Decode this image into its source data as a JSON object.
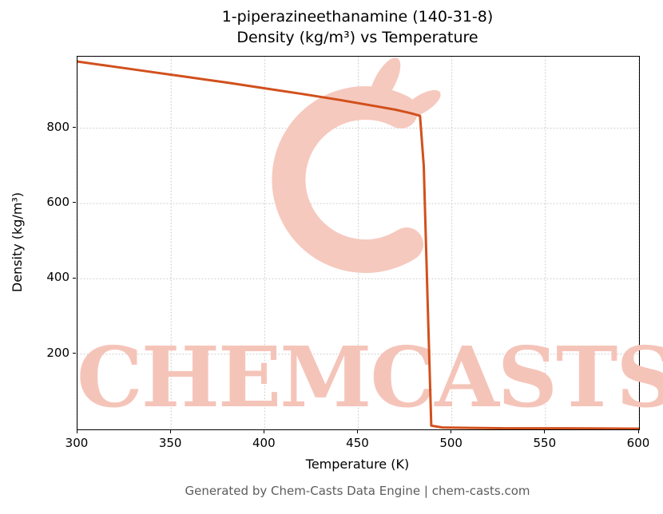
{
  "chart_data": {
    "type": "line",
    "title_line1": "1-piperazineethanamine (140-31-8)",
    "title_line2": "Density (kg/m³) vs Temperature",
    "xlabel": "Temperature (K)",
    "ylabel": "Density (kg/m³)",
    "xlim": [
      300,
      600
    ],
    "ylim": [
      0,
      990
    ],
    "x_ticks": [
      300,
      350,
      400,
      450,
      500,
      550,
      600
    ],
    "y_ticks": [
      200,
      400,
      600,
      800
    ],
    "grid": true,
    "legend": "none",
    "series": [
      {
        "name": "Density",
        "color": "#d1501d",
        "line_width": 3,
        "points": [
          [
            300,
            977
          ],
          [
            320,
            963
          ],
          [
            340,
            949
          ],
          [
            360,
            935
          ],
          [
            380,
            921
          ],
          [
            400,
            906
          ],
          [
            420,
            891
          ],
          [
            440,
            875
          ],
          [
            460,
            858
          ],
          [
            470,
            849
          ],
          [
            478,
            840
          ],
          [
            483,
            833
          ],
          [
            485,
            700
          ],
          [
            487,
            350
          ],
          [
            489,
            10
          ],
          [
            495,
            5
          ],
          [
            510,
            4
          ],
          [
            530,
            3
          ],
          [
            560,
            3
          ],
          [
            600,
            2
          ]
        ]
      }
    ]
  },
  "watermark": {
    "text": "CHEMCASTS",
    "logo": "chemcasts-c-swirl",
    "color": "#f5c4b9"
  },
  "footer": {
    "text": "Generated by Chem-Casts Data Engine | chem-casts.com"
  }
}
